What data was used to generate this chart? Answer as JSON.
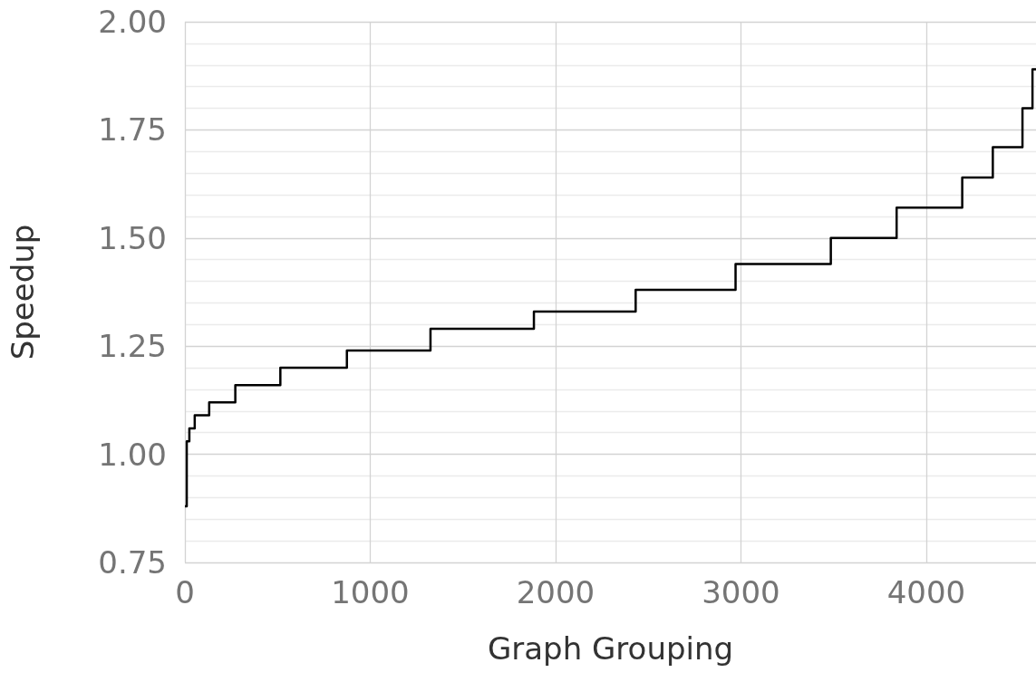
{
  "chart_data": {
    "type": "step",
    "xlabel": "Graph Grouping",
    "ylabel": "Speedup",
    "x": [
      0,
      10,
      24,
      53,
      131,
      272,
      515,
      874,
      1325,
      1883,
      2432,
      2971,
      3485,
      3840,
      4194,
      4359,
      4519,
      4573,
      4592
    ],
    "series": [
      {
        "color": "#000000",
        "values": [
          0.88,
          1.03,
          1.06,
          1.09,
          1.12,
          1.16,
          1.2,
          1.24,
          1.29,
          1.33,
          1.38,
          1.44,
          1.5,
          1.57,
          1.64,
          1.71,
          1.8,
          1.89,
          1.89
        ]
      }
    ],
    "xlim": [
      0,
      4592
    ],
    "xticks": [
      0,
      1000,
      2000,
      3000,
      4000
    ],
    "ylim": [
      0.75,
      2.0
    ],
    "yticks": [
      0.75,
      {
        "value": 1,
        "label": "1.00"
      },
      1.25,
      {
        "value": 1.5,
        "label": "1.50"
      },
      1.75,
      {
        "value": 2,
        "label": "2.00"
      }
    ],
    "grid": true,
    "marker": "none",
    "line_style": "solid"
  }
}
